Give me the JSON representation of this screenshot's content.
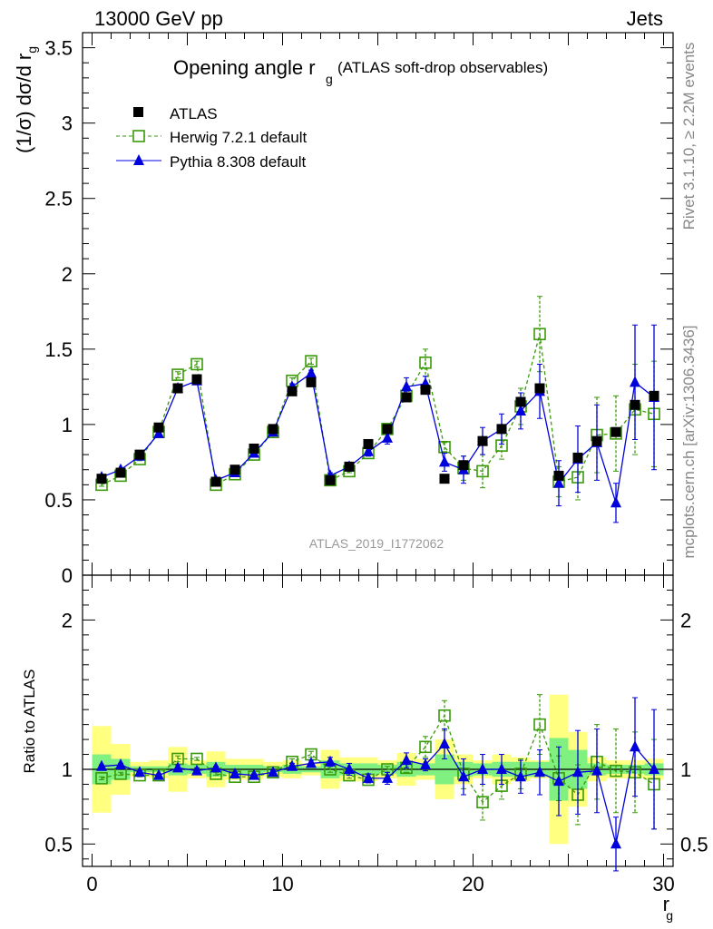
{
  "header": {
    "left": "13000 GeV pp",
    "right": "Jets"
  },
  "side": {
    "top": "Rivet 3.1.10, ≥ 2.2M events",
    "bottom": "mcplots.cern.ch [arXiv:1306.3436]"
  },
  "watermark": "ATLAS_2019_I1772062",
  "colors": {
    "atlas": "#000000",
    "herwig": "#3a9a0a",
    "pythia": "#0000dd",
    "band_inner": "#80f080",
    "band_outer": "#ffff80"
  },
  "chart_data": [
    {
      "type": "scatter",
      "title": "Opening angle r",
      "title_sub": "g",
      "title_suffix": "(ATLAS soft-drop observables)",
      "ylabel": "(1/σ) dσ/d r",
      "ylabel_sub": "g",
      "xlim": [
        -0.5,
        30.5
      ],
      "ylim": [
        0,
        3.6
      ],
      "yticks": [
        "0",
        "0.5",
        "1",
        "1.5",
        "2",
        "2.5",
        "3",
        "3.5"
      ],
      "legend_position": "top-left",
      "x": [
        0.5,
        1.5,
        2.5,
        3.5,
        4.5,
        5.5,
        6.5,
        7.5,
        8.5,
        9.5,
        10.5,
        11.5,
        12.5,
        13.5,
        14.5,
        15.5,
        16.5,
        17.5,
        18.5,
        19.5,
        20.5,
        21.5,
        22.5,
        23.5,
        24.5,
        25.5,
        26.5,
        27.5,
        28.5,
        29.5
      ],
      "series": [
        {
          "name": "ATLAS",
          "key": "atlas",
          "values": [
            0.64,
            0.68,
            0.8,
            0.98,
            1.24,
            1.3,
            0.62,
            0.7,
            0.84,
            0.97,
            1.22,
            1.28,
            0.63,
            0.72,
            0.87,
            0.97,
            1.18,
            1.23,
            0.64,
            0.73,
            0.89,
            0.97,
            1.15,
            1.24,
            0.66,
            0.78,
            0.89,
            0.95,
            1.13,
            1.19
          ]
        },
        {
          "name": "Herwig 7.2.1 default",
          "key": "herwig",
          "values": [
            0.6,
            0.66,
            0.77,
            0.95,
            1.33,
            1.4,
            0.6,
            0.67,
            0.8,
            0.95,
            1.29,
            1.42,
            0.63,
            0.69,
            0.81,
            0.97,
            1.19,
            1.41,
            0.85,
            0.71,
            0.69,
            0.86,
            1.12,
            1.6,
            0.62,
            0.65,
            0.93,
            0.94,
            1.1,
            1.07
          ],
          "errors": [
            0.01,
            0.01,
            0.01,
            0.01,
            0.02,
            0.02,
            0.01,
            0.01,
            0.01,
            0.01,
            0.02,
            0.02,
            0.01,
            0.01,
            0.02,
            0.02,
            0.03,
            0.09,
            0.03,
            0.08,
            0.11,
            0.09,
            0.12,
            0.25,
            0.1,
            0.15,
            0.25,
            0.25,
            0.3,
            0.35
          ]
        },
        {
          "name": "Pythia 8.308 default",
          "key": "pythia",
          "values": [
            0.65,
            0.7,
            0.79,
            0.94,
            1.24,
            1.29,
            0.63,
            0.68,
            0.81,
            0.95,
            1.25,
            1.34,
            0.66,
            0.72,
            0.82,
            0.91,
            1.25,
            1.27,
            0.75,
            0.7,
            0.89,
            0.97,
            1.09,
            1.22,
            0.61,
            0.77,
            0.88,
            0.48,
            1.28,
            1.18
          ],
          "errors": [
            0.01,
            0.01,
            0.01,
            0.01,
            0.02,
            0.02,
            0.01,
            0.01,
            0.01,
            0.01,
            0.02,
            0.02,
            0.02,
            0.03,
            0.03,
            0.04,
            0.06,
            0.05,
            0.06,
            0.09,
            0.09,
            0.1,
            0.12,
            0.18,
            0.15,
            0.22,
            0.25,
            0.13,
            0.38,
            0.48
          ]
        }
      ]
    },
    {
      "type": "scatter",
      "ylabel": "Ratio to ATLAS",
      "xlabel": "r",
      "xlabel_sub": "g",
      "xlim": [
        -0.5,
        30.5
      ],
      "ylim": [
        0.35,
        2.3
      ],
      "yticks": [
        "0.5",
        "1",
        "2"
      ],
      "xticks": [
        "0",
        "10",
        "20",
        "30"
      ],
      "x": [
        0.5,
        1.5,
        2.5,
        3.5,
        4.5,
        5.5,
        6.5,
        7.5,
        8.5,
        9.5,
        10.5,
        11.5,
        12.5,
        13.5,
        14.5,
        15.5,
        16.5,
        17.5,
        18.5,
        19.5,
        20.5,
        21.5,
        22.5,
        23.5,
        24.5,
        25.5,
        26.5,
        27.5,
        28.5,
        29.5
      ],
      "band_inner": [
        0.1,
        0.07,
        0.02,
        0.02,
        0.04,
        0.03,
        0.05,
        0.03,
        0.03,
        0.02,
        0.03,
        0.02,
        0.06,
        0.04,
        0.04,
        0.03,
        0.05,
        0.04,
        0.1,
        0.05,
        0.04,
        0.05,
        0.05,
        0.05,
        0.21,
        0.13,
        0.04,
        0.03,
        0.03,
        0.04
      ],
      "band_outer": [
        0.29,
        0.17,
        0.05,
        0.06,
        0.15,
        0.06,
        0.12,
        0.07,
        0.07,
        0.05,
        0.06,
        0.04,
        0.13,
        0.08,
        0.08,
        0.06,
        0.11,
        0.07,
        0.2,
        0.1,
        0.06,
        0.1,
        0.08,
        0.06,
        0.5,
        0.25,
        0.08,
        0.06,
        0.06,
        0.07
      ],
      "series": [
        {
          "name": "Herwig 7.2.1 default",
          "key": "herwig",
          "values": [
            0.94,
            0.97,
            0.96,
            0.96,
            1.07,
            1.07,
            0.97,
            0.95,
            0.95,
            0.98,
            1.05,
            1.1,
            1.0,
            0.96,
            0.93,
            1.0,
            1.01,
            1.15,
            1.36,
            0.97,
            0.78,
            0.89,
            0.97,
            1.3,
            0.94,
            0.83,
            1.05,
            0.99,
            0.98,
            0.9
          ],
          "errors": [
            0.01,
            0.01,
            0.01,
            0.01,
            0.02,
            0.01,
            0.01,
            0.01,
            0.01,
            0.01,
            0.02,
            0.02,
            0.02,
            0.02,
            0.02,
            0.02,
            0.03,
            0.07,
            0.1,
            0.1,
            0.12,
            0.09,
            0.1,
            0.2,
            0.15,
            0.2,
            0.25,
            0.28,
            0.27,
            0.3
          ]
        },
        {
          "name": "Pythia 8.308 default",
          "key": "pythia",
          "values": [
            1.02,
            1.03,
            0.98,
            0.96,
            1.01,
            0.99,
            1.01,
            0.97,
            0.96,
            0.98,
            1.02,
            1.04,
            1.05,
            1.0,
            0.94,
            0.94,
            1.06,
            1.03,
            1.17,
            0.95,
            1.0,
            1.0,
            0.95,
            0.98,
            0.92,
            0.98,
            0.99,
            0.5,
            1.15,
            1.0
          ],
          "errors": [
            0.01,
            0.01,
            0.01,
            0.01,
            0.02,
            0.02,
            0.01,
            0.01,
            0.01,
            0.01,
            0.02,
            0.02,
            0.03,
            0.04,
            0.03,
            0.04,
            0.05,
            0.04,
            0.1,
            0.12,
            0.1,
            0.1,
            0.11,
            0.15,
            0.23,
            0.28,
            0.28,
            0.18,
            0.33,
            0.4
          ]
        }
      ]
    }
  ]
}
